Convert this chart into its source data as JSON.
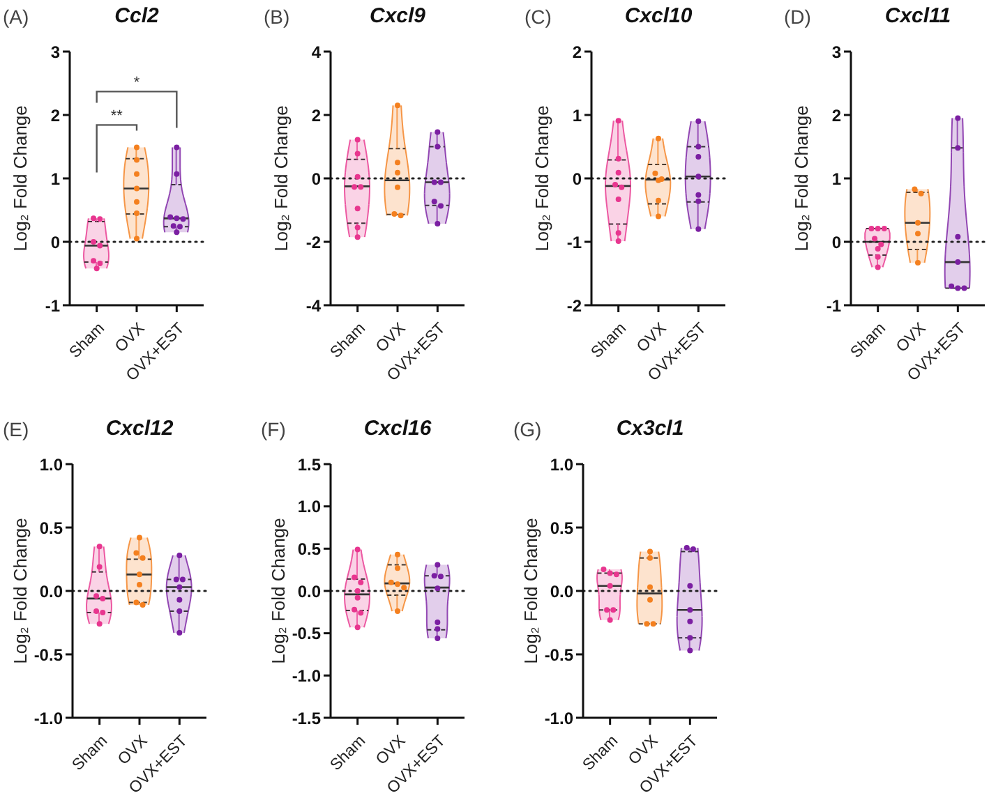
{
  "chart_data": [
    {
      "type": "box",
      "title": "Ccl2",
      "ylabel": "Log₂ Fold Change",
      "annotations": [
        "(A)",
        "**",
        "*"
      ],
      "categories": [
        "Sham",
        "OVX",
        "OVX+EST"
      ],
      "colors": [
        "#e8368f",
        "#f4801f",
        "#7b1fa2"
      ],
      "boxes": [
        {
          "low": -0.42,
          "q1": -0.32,
          "median": -0.06,
          "q3": 0.32,
          "high": 0.37
        },
        {
          "low": 0.05,
          "q1": 0.44,
          "median": 0.84,
          "q3": 1.31,
          "high": 1.49
        },
        {
          "low": 0.15,
          "q1": 0.24,
          "median": 0.37,
          "q3": 0.9,
          "high": 1.49
        }
      ],
      "series": [
        {
          "type": "scatter",
          "marker": "circle",
          "color": "#e8368f",
          "x": [
            "Sham",
            "Sham",
            "Sham",
            "Sham",
            "Sham",
            "Sham",
            "Sham"
          ],
          "values": [
            0.37,
            0.36,
            0.0,
            -0.06,
            -0.3,
            -0.34,
            -0.42
          ]
        },
        {
          "type": "scatter",
          "marker": "circle",
          "color": "#f4801f",
          "x": [
            "OVX",
            "OVX",
            "OVX",
            "OVX",
            "OVX",
            "OVX",
            "OVX"
          ],
          "values": [
            1.49,
            1.29,
            1.07,
            0.84,
            0.63,
            0.45,
            0.05
          ]
        },
        {
          "type": "scatter",
          "marker": "circle",
          "color": "#7b1fa2",
          "x": [
            "OVX+EST",
            "OVX+EST",
            "OVX+EST",
            "OVX+EST",
            "OVX+EST",
            "OVX+EST",
            "OVX+EST",
            "OVX+EST"
          ],
          "values": [
            1.49,
            1.07,
            0.39,
            0.37,
            0.36,
            0.25,
            0.24,
            0.15
          ]
        }
      ],
      "ylim": [
        -1,
        3
      ],
      "yticks": [
        -1,
        0,
        1,
        2,
        3
      ],
      "ref_lines": [
        {
          "axis": "y",
          "value": 0,
          "line_style": "dotted",
          "color": "#222222"
        }
      ]
    },
    {
      "type": "box",
      "title": "Cxcl9",
      "ylabel": "Log₂ Fold Change",
      "annotations": [
        "(B)"
      ],
      "categories": [
        "Sham",
        "OVX",
        "OVX+EST"
      ],
      "colors": [
        "#e8368f",
        "#f4801f",
        "#7b1fa2"
      ],
      "boxes": [
        {
          "low": -1.85,
          "q1": -1.41,
          "median": -0.25,
          "q3": 0.6,
          "high": 1.22
        },
        {
          "low": -1.17,
          "q1": -1.14,
          "median": -0.06,
          "q3": 0.94,
          "high": 2.3
        },
        {
          "low": -1.43,
          "q1": -0.85,
          "median": -0.12,
          "q3": 1.0,
          "high": 1.46
        }
      ],
      "series": [
        {
          "type": "scatter",
          "marker": "circle",
          "color": "#e8368f",
          "x": [
            "Sham",
            "Sham",
            "Sham",
            "Sham",
            "Sham",
            "Sham",
            "Sham",
            "Sham"
          ],
          "values": [
            1.22,
            0.78,
            0.05,
            -0.27,
            -0.27,
            -0.95,
            -1.55,
            -1.85
          ]
        },
        {
          "type": "scatter",
          "marker": "circle",
          "color": "#f4801f",
          "x": [
            "OVX",
            "OVX",
            "OVX",
            "OVX",
            "OVX",
            "OVX"
          ],
          "values": [
            2.3,
            0.5,
            0.18,
            -0.28,
            -1.12,
            -1.17
          ]
        },
        {
          "type": "scatter",
          "marker": "circle",
          "color": "#7b1fa2",
          "x": [
            "OVX+EST",
            "OVX+EST",
            "OVX+EST",
            "OVX+EST",
            "OVX+EST",
            "OVX+EST",
            "OVX+EST"
          ],
          "values": [
            1.46,
            1.0,
            -0.12,
            -0.12,
            -0.73,
            -0.87,
            -1.43
          ]
        }
      ],
      "ylim": [
        -4,
        4
      ],
      "yticks": [
        -4,
        -2,
        0,
        2,
        4
      ],
      "ref_lines": [
        {
          "axis": "y",
          "value": 0,
          "line_style": "dotted",
          "color": "#222222"
        }
      ]
    },
    {
      "type": "box",
      "title": "Cxcl10",
      "ylabel": "Log₂ Fold Change",
      "annotations": [
        "(C)"
      ],
      "categories": [
        "Sham",
        "OVX",
        "OVX+EST"
      ],
      "colors": [
        "#e8368f",
        "#f4801f",
        "#7b1fa2"
      ],
      "boxes": [
        {
          "low": -0.99,
          "q1": -0.72,
          "median": -0.12,
          "q3": 0.29,
          "high": 0.91
        },
        {
          "low": -0.6,
          "q1": -0.4,
          "median": -0.02,
          "q3": 0.22,
          "high": 0.63
        },
        {
          "low": -0.8,
          "q1": -0.37,
          "median": 0.03,
          "q3": 0.5,
          "high": 0.9
        }
      ],
      "series": [
        {
          "type": "scatter",
          "marker": "circle",
          "color": "#e8368f",
          "x": [
            "Sham",
            "Sham",
            "Sham",
            "Sham",
            "Sham",
            "Sham",
            "Sham",
            "Sham"
          ],
          "values": [
            0.91,
            0.31,
            0.09,
            -0.1,
            -0.14,
            -0.33,
            -0.86,
            -0.99
          ]
        },
        {
          "type": "scatter",
          "marker": "circle",
          "color": "#f4801f",
          "x": [
            "OVX",
            "OVX",
            "OVX",
            "OVX",
            "OVX",
            "OVX"
          ],
          "values": [
            0.63,
            0.08,
            -0.01,
            -0.03,
            -0.35,
            -0.6
          ]
        },
        {
          "type": "scatter",
          "marker": "circle",
          "color": "#7b1fa2",
          "x": [
            "OVX+EST",
            "OVX+EST",
            "OVX+EST",
            "OVX+EST",
            "OVX+EST",
            "OVX+EST",
            "OVX+EST"
          ],
          "values": [
            0.9,
            0.5,
            0.34,
            0.03,
            -0.26,
            -0.36,
            -0.8
          ]
        }
      ],
      "ylim": [
        -2,
        2
      ],
      "yticks": [
        -2,
        -1,
        0,
        1,
        2
      ],
      "ref_lines": [
        {
          "axis": "y",
          "value": 0,
          "line_style": "dotted",
          "color": "#222222"
        }
      ]
    },
    {
      "type": "box",
      "title": "Cxcl11",
      "ylabel": "Log₂ Fold Change",
      "annotations": [
        "(D)"
      ],
      "categories": [
        "Sham",
        "OVX",
        "OVX+EST"
      ],
      "colors": [
        "#e8368f",
        "#f4801f",
        "#7b1fa2"
      ],
      "boxes": [
        {
          "low": -0.4,
          "q1": -0.21,
          "median": 0.0,
          "q3": 0.21,
          "high": 0.21
        },
        {
          "low": -0.33,
          "q1": -0.12,
          "median": 0.3,
          "q3": 0.78,
          "high": 0.83
        },
        {
          "low": -0.73,
          "q1": -0.73,
          "median": -0.32,
          "q3": 1.48,
          "high": 1.95
        }
      ],
      "series": [
        {
          "type": "scatter",
          "marker": "circle",
          "color": "#e8368f",
          "x": [
            "Sham",
            "Sham",
            "Sham",
            "Sham",
            "Sham",
            "Sham",
            "Sham",
            "Sham"
          ],
          "values": [
            0.21,
            0.21,
            0.21,
            0.05,
            -0.04,
            -0.11,
            -0.24,
            -0.4
          ]
        },
        {
          "type": "scatter",
          "marker": "circle",
          "color": "#f4801f",
          "x": [
            "OVX",
            "OVX",
            "OVX",
            "OVX",
            "OVX"
          ],
          "values": [
            0.83,
            0.76,
            0.3,
            0.13,
            -0.33
          ]
        },
        {
          "type": "scatter",
          "marker": "circle",
          "color": "#7b1fa2",
          "x": [
            "OVX+EST",
            "OVX+EST",
            "OVX+EST",
            "OVX+EST",
            "OVX+EST",
            "OVX+EST",
            "OVX+EST"
          ],
          "values": [
            1.95,
            1.48,
            0.08,
            -0.32,
            -0.7,
            -0.73,
            -0.73
          ]
        }
      ],
      "ylim": [
        -1,
        3
      ],
      "yticks": [
        -1,
        0,
        1,
        2,
        3
      ],
      "ref_lines": [
        {
          "axis": "y",
          "value": 0,
          "line_style": "dotted",
          "color": "#222222"
        }
      ]
    },
    {
      "type": "box",
      "title": "Cxcl12",
      "ylabel": "Log₂ Fold Change",
      "annotations": [
        "(E)"
      ],
      "categories": [
        "Sham",
        "OVX",
        "OVX+EST"
      ],
      "colors": [
        "#e8368f",
        "#f4801f",
        "#7b1fa2"
      ],
      "boxes": [
        {
          "low": -0.26,
          "q1": -0.17,
          "median": -0.06,
          "q3": 0.15,
          "high": 0.35
        },
        {
          "low": -0.11,
          "q1": -0.09,
          "median": 0.13,
          "q3": 0.25,
          "high": 0.42
        },
        {
          "low": -0.33,
          "q1": -0.16,
          "median": 0.03,
          "q3": 0.09,
          "high": 0.28
        }
      ],
      "series": [
        {
          "type": "scatter",
          "marker": "circle",
          "color": "#e8368f",
          "x": [
            "Sham",
            "Sham",
            "Sham",
            "Sham",
            "Sham",
            "Sham",
            "Sham"
          ],
          "values": [
            0.35,
            0.19,
            -0.04,
            -0.06,
            -0.16,
            -0.17,
            -0.26
          ]
        },
        {
          "type": "scatter",
          "marker": "circle",
          "color": "#f4801f",
          "x": [
            "OVX",
            "OVX",
            "OVX",
            "OVX",
            "OVX",
            "OVX",
            "OVX"
          ],
          "values": [
            0.42,
            0.3,
            0.26,
            0.13,
            0.05,
            -0.09,
            -0.11
          ]
        },
        {
          "type": "scatter",
          "marker": "circle",
          "color": "#7b1fa2",
          "x": [
            "OVX+EST",
            "OVX+EST",
            "OVX+EST",
            "OVX+EST",
            "OVX+EST",
            "OVX+EST",
            "OVX+EST"
          ],
          "values": [
            0.28,
            0.09,
            0.09,
            0.03,
            -0.07,
            -0.16,
            -0.33
          ]
        }
      ],
      "ylim": [
        -1,
        1
      ],
      "yticks": [
        {
          "value": -1,
          "label": "-1.0"
        },
        -0.5,
        {
          "value": 0,
          "label": "0.0"
        },
        0.5,
        {
          "value": 1,
          "label": "1.0"
        }
      ],
      "ref_lines": [
        {
          "axis": "y",
          "value": 0,
          "line_style": "dotted",
          "color": "#222222"
        }
      ]
    },
    {
      "type": "box",
      "title": "Cxcl16",
      "ylabel": "Log₂ Fold Change",
      "annotations": [
        "(F)"
      ],
      "categories": [
        "Sham",
        "OVX",
        "OVX+EST"
      ],
      "colors": [
        "#e8368f",
        "#f4801f",
        "#7b1fa2"
      ],
      "boxes": [
        {
          "low": -0.43,
          "q1": -0.23,
          "median": -0.04,
          "q3": 0.14,
          "high": 0.49
        },
        {
          "low": -0.24,
          "q1": -0.05,
          "median": 0.09,
          "q3": 0.31,
          "high": 0.43
        },
        {
          "low": -0.56,
          "q1": -0.46,
          "median": 0.04,
          "q3": 0.18,
          "high": 0.31
        }
      ],
      "series": [
        {
          "type": "scatter",
          "marker": "circle",
          "color": "#e8368f",
          "x": [
            "Sham",
            "Sham",
            "Sham",
            "Sham",
            "Sham",
            "Sham",
            "Sham",
            "Sham"
          ],
          "values": [
            0.49,
            0.16,
            0.1,
            0.0,
            -0.08,
            -0.22,
            -0.26,
            -0.43
          ]
        },
        {
          "type": "scatter",
          "marker": "circle",
          "color": "#f4801f",
          "x": [
            "OVX",
            "OVX",
            "OVX",
            "OVX",
            "OVX",
            "OVX"
          ],
          "values": [
            0.43,
            0.27,
            0.1,
            0.08,
            0.04,
            -0.24
          ]
        },
        {
          "type": "scatter",
          "marker": "circle",
          "color": "#7b1fa2",
          "x": [
            "OVX+EST",
            "OVX+EST",
            "OVX+EST",
            "OVX+EST",
            "OVX+EST",
            "OVX+EST",
            "OVX+EST"
          ],
          "values": [
            0.31,
            0.18,
            0.17,
            0.03,
            -0.37,
            -0.45,
            -0.56
          ]
        }
      ],
      "ylim": [
        -1.5,
        1.5
      ],
      "yticks": [
        -1.5,
        {
          "value": -1,
          "label": "-1.0"
        },
        -0.5,
        {
          "value": 0,
          "label": "0.0"
        },
        0.5,
        {
          "value": 1,
          "label": "1.0"
        },
        1.5
      ],
      "ref_lines": [
        {
          "axis": "y",
          "value": 0,
          "line_style": "dotted",
          "color": "#222222"
        }
      ]
    },
    {
      "type": "box",
      "title": "Cx3cl1",
      "ylabel": "Log₂ Fold Change",
      "annotations": [
        "(G)"
      ],
      "categories": [
        "Sham",
        "OVX",
        "OVX+EST"
      ],
      "colors": [
        "#e8368f",
        "#f4801f",
        "#7b1fa2"
      ],
      "boxes": [
        {
          "low": -0.23,
          "q1": -0.15,
          "median": 0.04,
          "q3": 0.14,
          "high": 0.17
        },
        {
          "low": -0.26,
          "q1": -0.26,
          "median": -0.02,
          "q3": 0.26,
          "high": 0.31
        },
        {
          "low": -0.47,
          "q1": -0.37,
          "median": -0.15,
          "q3": 0.31,
          "high": 0.34
        }
      ],
      "series": [
        {
          "type": "scatter",
          "marker": "circle",
          "color": "#e8368f",
          "x": [
            "Sham",
            "Sham",
            "Sham",
            "Sham",
            "Sham",
            "Sham",
            "Sham"
          ],
          "values": [
            0.17,
            0.14,
            0.13,
            0.04,
            -0.15,
            -0.15,
            -0.23
          ]
        },
        {
          "type": "scatter",
          "marker": "circle",
          "color": "#f4801f",
          "x": [
            "OVX",
            "OVX",
            "OVX",
            "OVX",
            "OVX",
            "OVX"
          ],
          "values": [
            0.31,
            0.26,
            0.03,
            -0.07,
            -0.26,
            -0.26
          ]
        },
        {
          "type": "scatter",
          "marker": "circle",
          "color": "#7b1fa2",
          "x": [
            "OVX+EST",
            "OVX+EST",
            "OVX+EST",
            "OVX+EST",
            "OVX+EST",
            "OVX+EST",
            "OVX+EST"
          ],
          "values": [
            0.34,
            0.33,
            0.04,
            -0.15,
            -0.24,
            -0.37,
            -0.47
          ]
        }
      ],
      "ylim": [
        -1,
        1
      ],
      "yticks": [
        {
          "value": -1,
          "label": "-1.0"
        },
        -0.5,
        {
          "value": 0,
          "label": "0.0"
        },
        0.5,
        {
          "value": 1,
          "label": "1.0"
        }
      ],
      "ref_lines": [
        {
          "axis": "y",
          "value": 0,
          "line_style": "dotted",
          "color": "#222222"
        }
      ]
    }
  ]
}
